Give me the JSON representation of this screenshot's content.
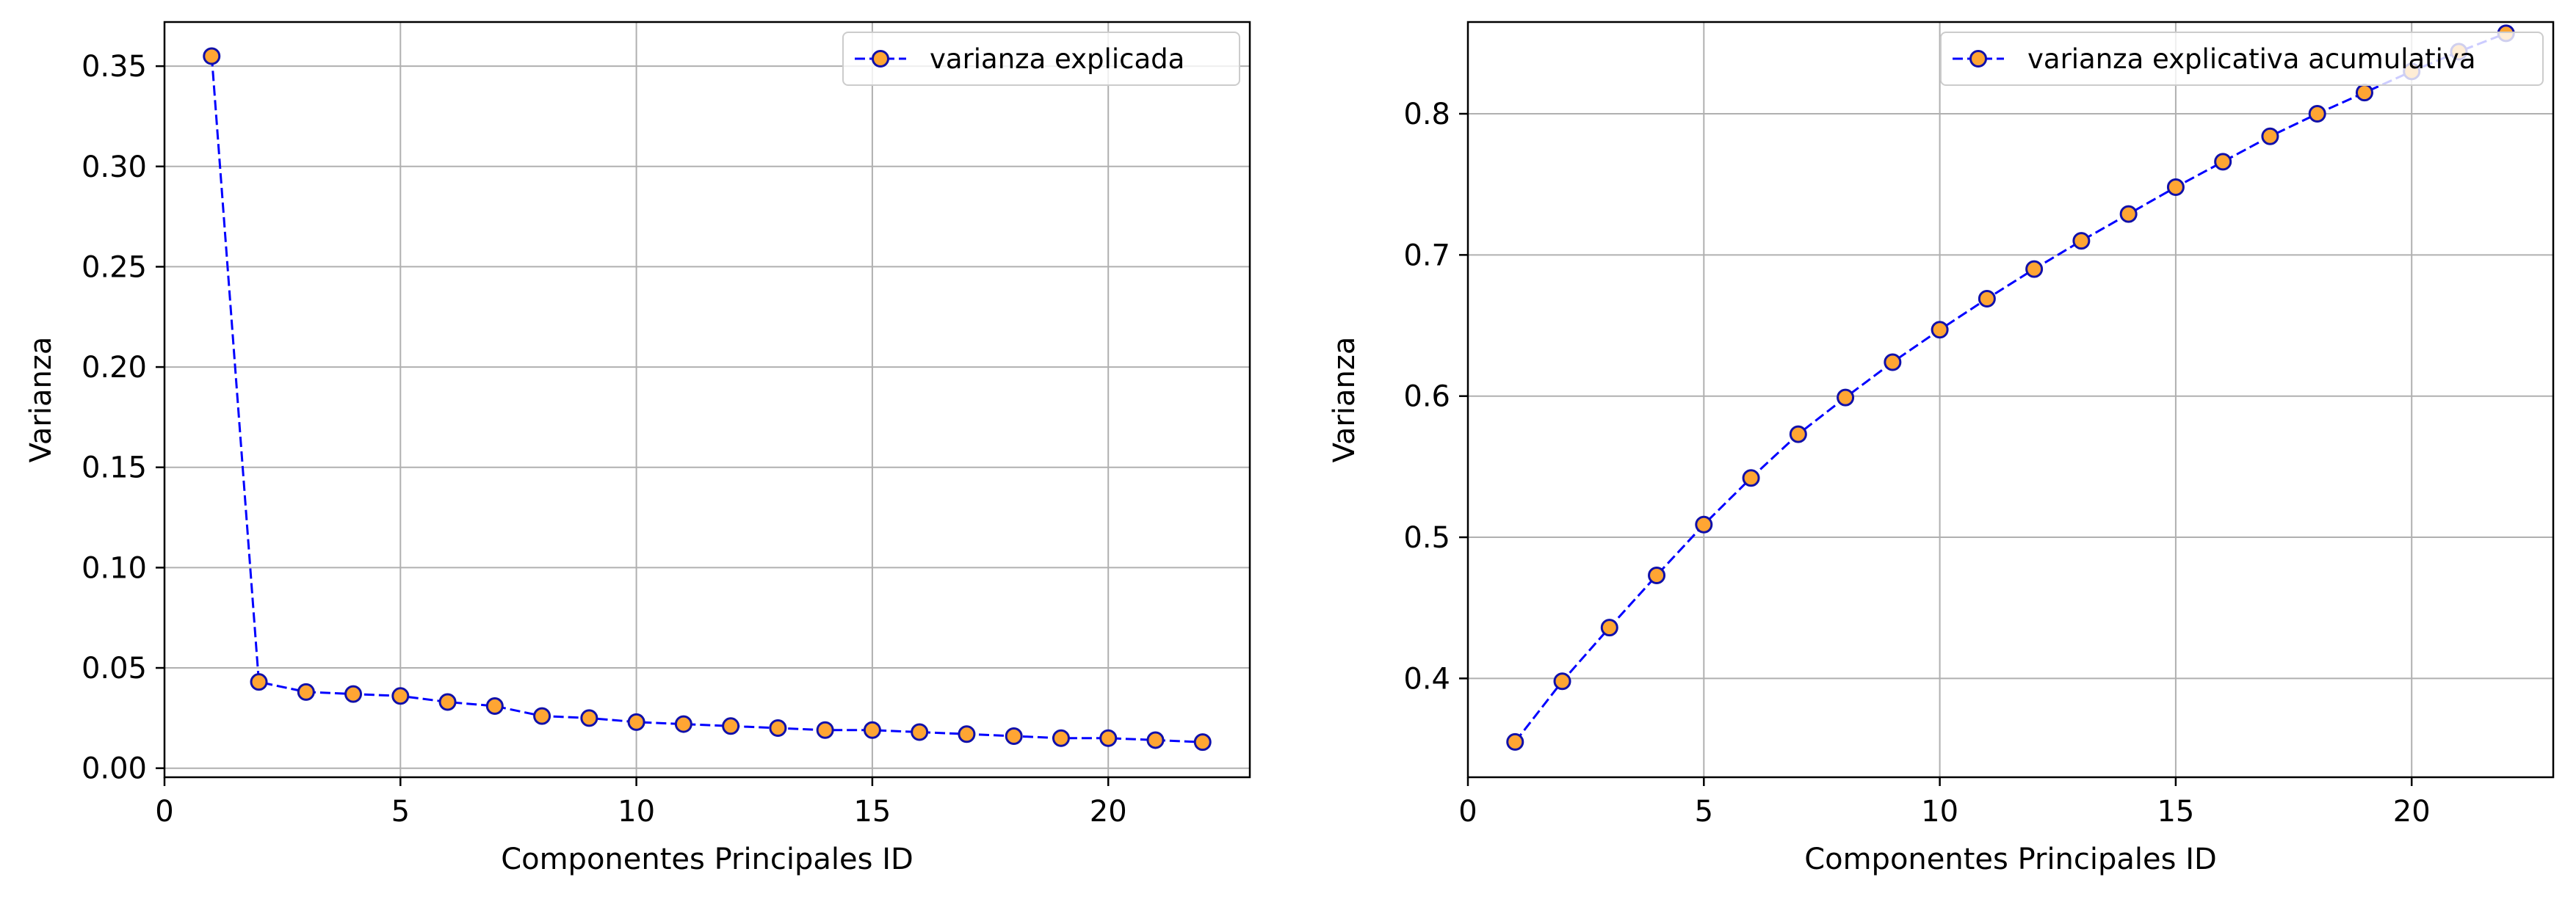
{
  "colors": {
    "line": "#0000ff",
    "marker_fill": "#ffa533",
    "marker_edge": "#1010aa",
    "grid": "#b0b0b0",
    "frame": "#000000",
    "legend_border": "#cccccc"
  },
  "chart_data": [
    {
      "type": "line",
      "title": "",
      "xlabel": "Componentes Principales ID",
      "ylabel": "Varianza",
      "xlim": [
        0,
        23
      ],
      "ylim": [
        -0.0045,
        0.372
      ],
      "xticks": [
        0,
        5,
        10,
        15,
        20
      ],
      "yticks": [
        0.0,
        0.05,
        0.1,
        0.15,
        0.2,
        0.25,
        0.3,
        0.35
      ],
      "ytick_labels": [
        "0.00",
        "0.05",
        "0.10",
        "0.15",
        "0.20",
        "0.25",
        "0.30",
        "0.35"
      ],
      "grid": true,
      "legend_position": "upper-right",
      "series": [
        {
          "name": "varianza explicada",
          "line_style": "dashed",
          "marker": "circle",
          "x": [
            1,
            2,
            3,
            4,
            5,
            6,
            7,
            8,
            9,
            10,
            11,
            12,
            13,
            14,
            15,
            16,
            17,
            18,
            19,
            20,
            21,
            22
          ],
          "y": [
            0.355,
            0.043,
            0.038,
            0.037,
            0.036,
            0.033,
            0.031,
            0.026,
            0.025,
            0.023,
            0.022,
            0.021,
            0.02,
            0.019,
            0.019,
            0.018,
            0.017,
            0.016,
            0.015,
            0.015,
            0.014,
            0.013
          ]
        }
      ]
    },
    {
      "type": "line",
      "title": "",
      "xlabel": "Componentes Principales ID",
      "ylabel": "Varianza",
      "xlim": [
        0,
        23
      ],
      "ylim": [
        0.33,
        0.865
      ],
      "xticks": [
        0,
        5,
        10,
        15,
        20
      ],
      "yticks": [
        0.4,
        0.5,
        0.6,
        0.7,
        0.8
      ],
      "ytick_labels": [
        "0.4",
        "0.5",
        "0.6",
        "0.7",
        "0.8"
      ],
      "grid": true,
      "legend_position": "upper-right",
      "series": [
        {
          "name": "varianza explicativa acumulativa",
          "line_style": "dashed",
          "marker": "circle",
          "x": [
            1,
            2,
            3,
            4,
            5,
            6,
            7,
            8,
            9,
            10,
            11,
            12,
            13,
            14,
            15,
            16,
            17,
            18,
            19,
            20,
            21,
            22
          ],
          "y": [
            0.355,
            0.398,
            0.436,
            0.473,
            0.509,
            0.542,
            0.573,
            0.599,
            0.624,
            0.647,
            0.669,
            0.69,
            0.71,
            0.729,
            0.748,
            0.766,
            0.784,
            0.8,
            0.815,
            0.83,
            0.844,
            0.857
          ]
        }
      ]
    }
  ]
}
